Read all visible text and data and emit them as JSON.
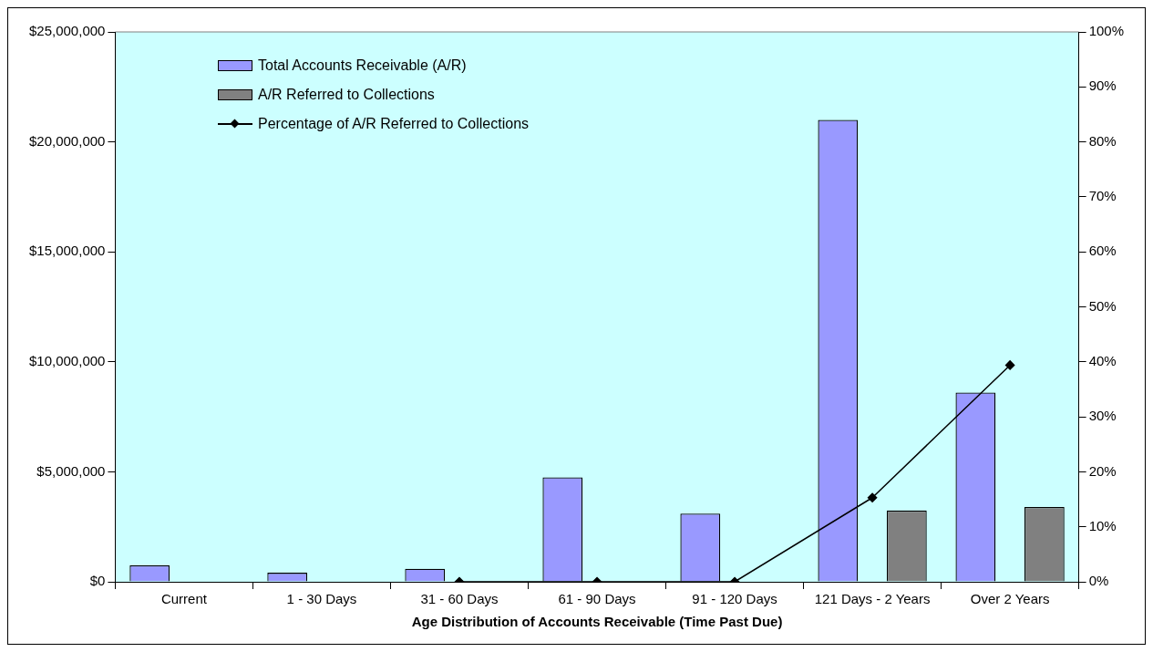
{
  "chart_data": {
    "type": "bar",
    "xlabel": "Age Distribution of Accounts Receivable (Time Past Due)",
    "categories": [
      "Current",
      "1 - 30 Days",
      "31 - 60 Days",
      "61 - 90 Days",
      "91 - 120 Days",
      "121 Days - 2 Years",
      "Over 2 Years"
    ],
    "series": [
      {
        "name": "Total Accounts Receivable (A/R)",
        "color": "#9999ff",
        "values": [
          750000,
          410000,
          590000,
          4750000,
          3100000,
          21000000,
          8600000
        ]
      },
      {
        "name": "A/R Referred to Collections",
        "color": "#808080",
        "values": [
          null,
          null,
          0,
          0,
          0,
          3240000,
          3400000
        ]
      },
      {
        "name": "Percentage of A/R Referred to Collections",
        "type": "line",
        "axis": "y2",
        "color": "#000000",
        "marker": "diamond",
        "values": [
          null,
          null,
          0,
          0,
          0,
          15.3,
          39.4
        ]
      }
    ],
    "ylim": [
      0,
      25000000
    ],
    "yticks": [
      {
        "value": 0,
        "label": "$0"
      },
      {
        "value": 5000000,
        "label": "$5,000,000"
      },
      {
        "value": 10000000,
        "label": "$10,000,000"
      },
      {
        "value": 15000000,
        "label": "$15,000,000"
      },
      {
        "value": 20000000,
        "label": "$20,000,000"
      },
      {
        "value": 25000000,
        "label": "$25,000,000"
      }
    ],
    "y2lim": [
      0,
      100
    ],
    "y2ticks": [
      {
        "value": 0,
        "label": "0%"
      },
      {
        "value": 10,
        "label": "10%"
      },
      {
        "value": 20,
        "label": "20%"
      },
      {
        "value": 30,
        "label": "30%"
      },
      {
        "value": 40,
        "label": "40%"
      },
      {
        "value": 50,
        "label": "50%"
      },
      {
        "value": 60,
        "label": "60%"
      },
      {
        "value": 70,
        "label": "70%"
      },
      {
        "value": 80,
        "label": "80%"
      },
      {
        "value": 90,
        "label": "90%"
      },
      {
        "value": 100,
        "label": "100%"
      }
    ],
    "grid": false,
    "legend": "top left"
  }
}
